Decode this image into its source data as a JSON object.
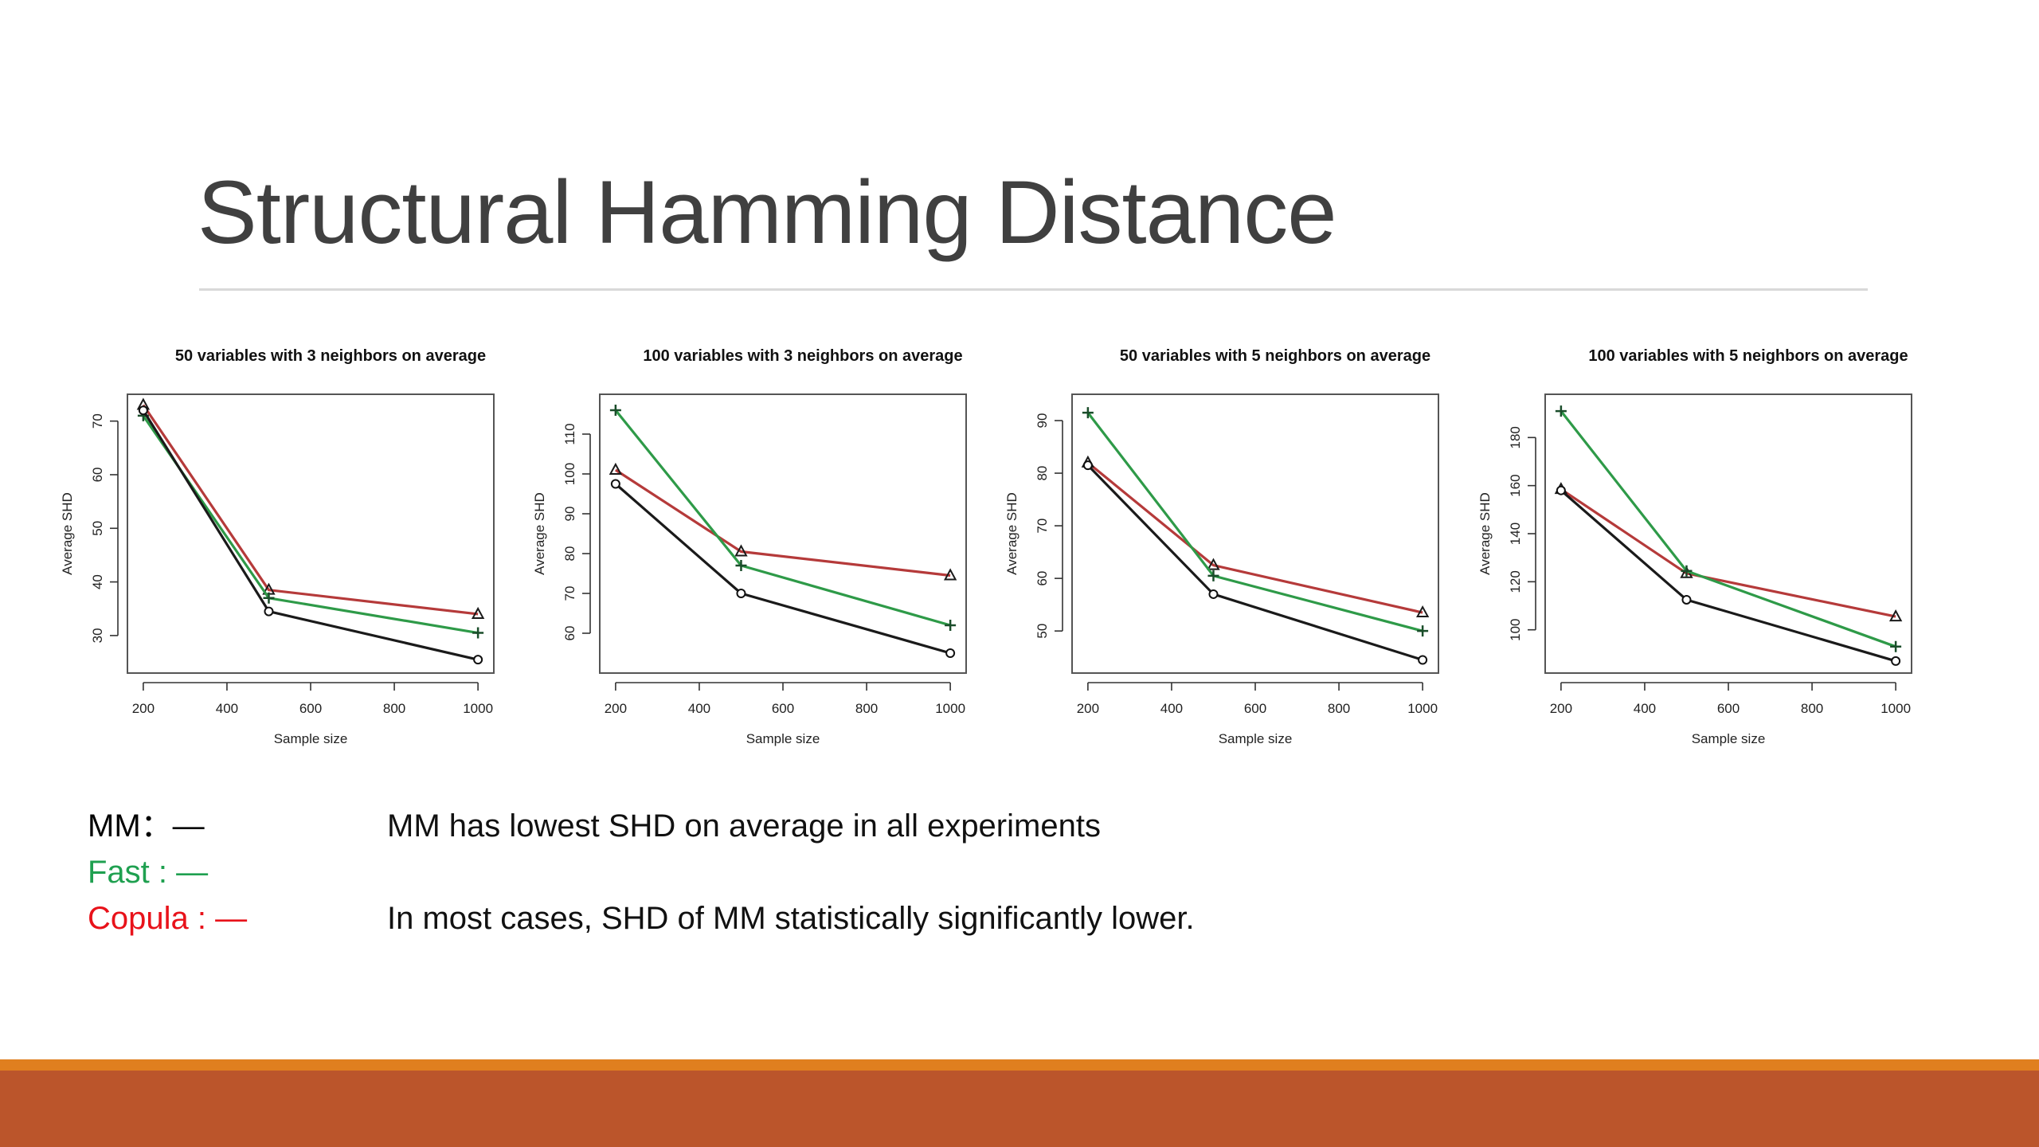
{
  "slide": {
    "title": "Structural Hamming Distance",
    "legend": [
      {
        "label": "MM：",
        "dash": "—",
        "color": "#000000"
      },
      {
        "label": "Fast : ",
        "dash": "—",
        "color": "#1fa050"
      },
      {
        "label": "Copula : ",
        "dash": "—",
        "color": "#e8121a"
      }
    ],
    "notes": [
      "MM has lowest SHD on average in all experiments",
      "",
      "In most cases, SHD of MM statistically significantly lower."
    ],
    "colors": {
      "title": "#404040",
      "rule": "#d9d9d9",
      "band_top": "#e07f1f",
      "band": "#bb552b"
    }
  },
  "chart_data": [
    {
      "type": "line",
      "title": "50 variables with 3 neighbors on average",
      "xlabel": "Sample size",
      "ylabel": "Average SHD",
      "x": [
        200,
        500,
        1000
      ],
      "xlim": [
        185,
        1015
      ],
      "ylim": [
        23,
        75
      ],
      "xticks": [
        200,
        400,
        600,
        800,
        1000
      ],
      "yticks": [
        30,
        40,
        50,
        60,
        70
      ],
      "series": [
        {
          "name": "MM",
          "values": [
            72,
            34.5,
            25.5
          ],
          "color": "#1a1a1a",
          "marker": "circle"
        },
        {
          "name": "Fast",
          "values": [
            71,
            37,
            30.5
          ],
          "color": "#2e9a48",
          "marker": "plus"
        },
        {
          "name": "Copula",
          "values": [
            73,
            38.5,
            34
          ],
          "color": "#b53a3a",
          "marker": "triangle"
        }
      ]
    },
    {
      "type": "line",
      "title": "100 variables with 3 neighbors on average",
      "xlabel": "Sample size",
      "ylabel": "Average SHD",
      "x": [
        200,
        500,
        1000
      ],
      "xlim": [
        185,
        1015
      ],
      "ylim": [
        50,
        120
      ],
      "xticks": [
        200,
        400,
        600,
        800,
        1000
      ],
      "yticks": [
        60,
        70,
        80,
        90,
        100,
        110
      ],
      "series": [
        {
          "name": "MM",
          "values": [
            97.5,
            70,
            55
          ],
          "color": "#1a1a1a",
          "marker": "circle"
        },
        {
          "name": "Fast",
          "values": [
            116,
            77,
            62
          ],
          "color": "#2e9a48",
          "marker": "plus"
        },
        {
          "name": "Copula",
          "values": [
            101,
            80.5,
            74.5
          ],
          "color": "#b53a3a",
          "marker": "triangle"
        }
      ]
    },
    {
      "type": "line",
      "title": "50 variables with 5 neighbors on average",
      "xlabel": "Sample size",
      "ylabel": "Average SHD",
      "x": [
        200,
        500,
        1000
      ],
      "xlim": [
        185,
        1015
      ],
      "ylim": [
        42,
        95
      ],
      "xticks": [
        200,
        400,
        600,
        800,
        1000
      ],
      "yticks": [
        50,
        60,
        70,
        80,
        90
      ],
      "series": [
        {
          "name": "MM",
          "values": [
            81.5,
            57,
            44.5
          ],
          "color": "#1a1a1a",
          "marker": "circle"
        },
        {
          "name": "Fast",
          "values": [
            91.5,
            60.5,
            50
          ],
          "color": "#2e9a48",
          "marker": "plus"
        },
        {
          "name": "Copula",
          "values": [
            82,
            62.5,
            53.5
          ],
          "color": "#b53a3a",
          "marker": "triangle"
        }
      ]
    },
    {
      "type": "line",
      "title": "100 variables with 5 neighbors on average",
      "xlabel": "Sample size",
      "ylabel": "Average SHD",
      "x": [
        200,
        500,
        1000
      ],
      "xlim": [
        185,
        1015
      ],
      "ylim": [
        82,
        198
      ],
      "xticks": [
        200,
        400,
        600,
        800,
        1000
      ],
      "yticks": [
        100,
        120,
        140,
        160,
        180
      ],
      "series": [
        {
          "name": "MM",
          "values": [
            158,
            112.5,
            87
          ],
          "color": "#1a1a1a",
          "marker": "circle"
        },
        {
          "name": "Fast",
          "values": [
            191,
            124.5,
            93
          ],
          "color": "#2e9a48",
          "marker": "plus"
        },
        {
          "name": "Copula",
          "values": [
            158.5,
            123.5,
            105.5
          ],
          "color": "#b53a3a",
          "marker": "triangle"
        }
      ]
    }
  ]
}
